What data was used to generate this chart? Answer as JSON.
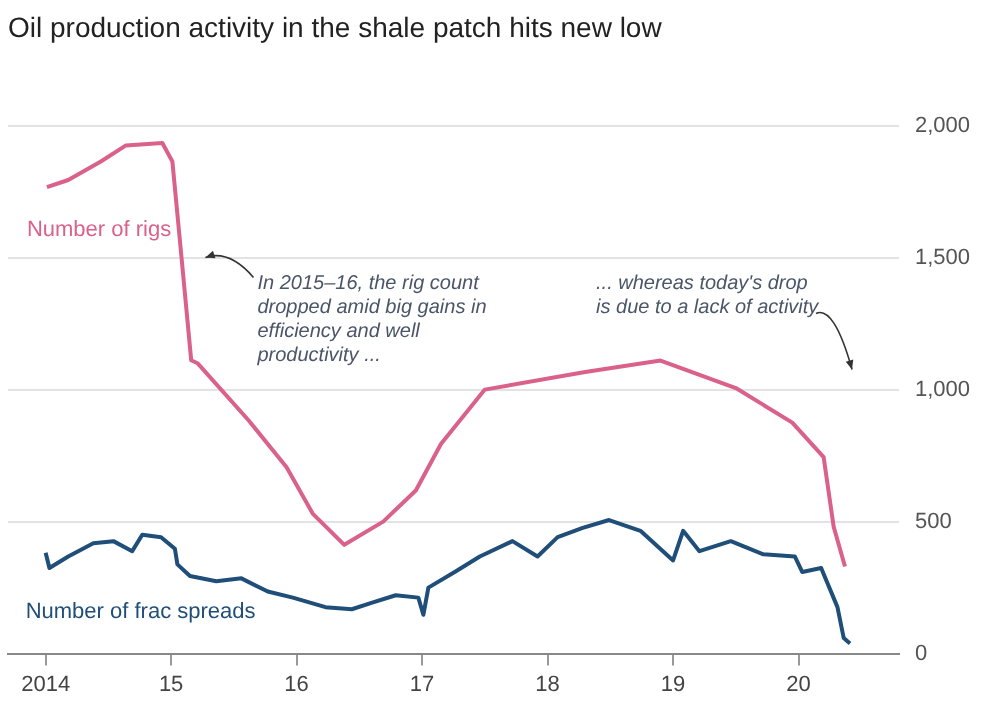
{
  "chart_data": {
    "type": "line",
    "title": "Oil production activity in the shale patch hits new low",
    "xlim": [
      2013.7,
      2020.8
    ],
    "xticks": [
      {
        "value": 2014,
        "label": "2014"
      },
      {
        "value": 2015,
        "label": "15"
      },
      {
        "value": 2016,
        "label": "16"
      },
      {
        "value": 2017,
        "label": "17"
      },
      {
        "value": 2018,
        "label": "18"
      },
      {
        "value": 2019,
        "label": "19"
      },
      {
        "value": 2020,
        "label": "20"
      }
    ],
    "ylim": [
      0,
      2000
    ],
    "yticks": [
      {
        "value": 0,
        "label": "0"
      },
      {
        "value": 500,
        "label": "500"
      },
      {
        "value": 1000,
        "label": "1,000"
      },
      {
        "value": 1500,
        "label": "1,500"
      },
      {
        "value": 2000,
        "label": "2,000"
      }
    ],
    "grid": "y",
    "legend": false,
    "marker": "none",
    "line_style": "solid",
    "series": [
      {
        "name": "Number of rigs",
        "color": "#d9618a",
        "x": [
          2014.01,
          2014.18,
          2014.44,
          2014.64,
          2014.93,
          2015.01,
          2015.08,
          2015.16,
          2015.21,
          2015.62,
          2015.92,
          2016.13,
          2016.38,
          2016.69,
          2016.95,
          2017.15,
          2017.5,
          2018.3,
          2018.9,
          2019.5,
          2019.95,
          2020.2,
          2020.28,
          2020.37
        ],
        "values": [
          1767,
          1794,
          1864,
          1925,
          1934,
          1864,
          1514,
          1111,
          1100,
          882,
          706,
          529,
          412,
          500,
          618,
          794,
          1000,
          1067,
          1110,
          1006,
          875,
          744,
          480,
          330
        ]
      },
      {
        "name": "Number of frac spreads",
        "color": "#1f4e79",
        "x": [
          2014.0,
          2014.03,
          2014.18,
          2014.38,
          2014.54,
          2014.69,
          2014.77,
          2014.92,
          2015.03,
          2015.05,
          2015.15,
          2015.36,
          2015.56,
          2015.77,
          2015.97,
          2016.23,
          2016.44,
          2016.59,
          2016.79,
          2016.97,
          2017.01,
          2017.05,
          2017.26,
          2017.46,
          2017.72,
          2017.92,
          2018.08,
          2018.28,
          2018.49,
          2018.74,
          2019.0,
          2019.08,
          2019.21,
          2019.46,
          2019.72,
          2019.97,
          2020.03,
          2020.18,
          2020.31,
          2020.36,
          2020.41
        ],
        "values": [
          382,
          324,
          368,
          418,
          426,
          388,
          450,
          441,
          397,
          338,
          294,
          274,
          285,
          235,
          212,
          176,
          168,
          191,
          221,
          212,
          147,
          250,
          309,
          368,
          426,
          368,
          441,
          476,
          506,
          465,
          353,
          465,
          388,
          426,
          376,
          368,
          309,
          324,
          176,
          59,
          38
        ]
      }
    ],
    "annotations": [
      "In 2015–16, the rig count dropped amid big gains in efficiency and well productivity ...",
      "... whereas today's drop is due to a lack of activity"
    ]
  }
}
